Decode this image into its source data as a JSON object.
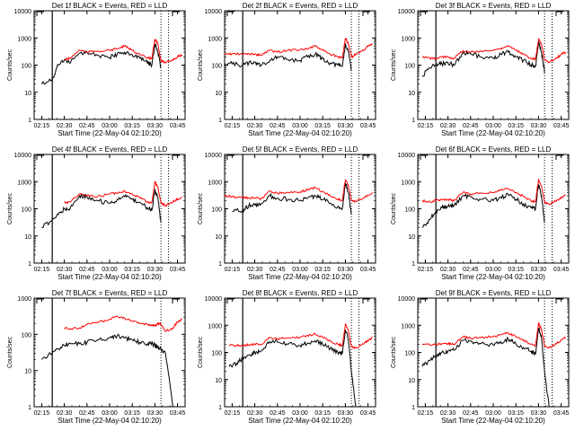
{
  "figure": {
    "line_colors": {
      "events": "#000000",
      "lld": "#ff0000",
      "axes": "#000000"
    },
    "x_tick_labels": [
      "02:15",
      "02:30",
      "02:45",
      "03:00",
      "03:15",
      "03:30",
      "03:45"
    ],
    "y_tick_labels": [
      "1",
      "10",
      "100",
      "1000",
      "10000"
    ]
  },
  "chart_data": [
    {
      "type": "line",
      "title": "Det 1f BLACK = Events, RED = LLD",
      "xlabel": "Start Time (22-May-04 02:10:20)",
      "ylabel": "Counts/sec",
      "y_scale": "log",
      "ylim": [
        1,
        10000
      ],
      "xlim": [
        "02:10",
        "03:50"
      ],
      "x_ticks": [
        "02:15",
        "02:30",
        "02:45",
        "03:00",
        "03:15",
        "03:30",
        "03:45"
      ],
      "vlines": [
        "02:22",
        "03:34",
        "03:39"
      ],
      "x": [
        "02:15",
        "02:22",
        "02:26",
        "02:30",
        "02:34",
        "02:40",
        "02:45",
        "02:52",
        "03:00",
        "03:05",
        "03:10",
        "03:15",
        "03:20",
        "03:25",
        "03:28",
        "03:30",
        "03:32",
        "03:34",
        "03:37",
        "03:42",
        "03:45",
        "03:48"
      ],
      "series": [
        {
          "name": "Events",
          "values": [
            20,
            30,
            100,
            160,
            120,
            270,
            300,
            230,
            190,
            250,
            300,
            240,
            180,
            120,
            100,
            600,
            300,
            80,
            null,
            null,
            null,
            null
          ]
        },
        {
          "name": "LLD",
          "values": [
            null,
            null,
            null,
            160,
            180,
            360,
            300,
            330,
            350,
            400,
            500,
            350,
            250,
            180,
            180,
            900,
            600,
            150,
            120,
            160,
            200,
            240
          ]
        }
      ]
    },
    {
      "type": "line",
      "title": "Det 2f BLACK = Events, RED = LLD",
      "xlabel": "Start Time (22-May-04 02:10:20)",
      "ylabel": "Counts/sec",
      "y_scale": "log",
      "ylim": [
        1,
        10000
      ],
      "xlim": [
        "02:10",
        "03:50"
      ],
      "x_ticks": [
        "02:15",
        "02:30",
        "02:45",
        "03:00",
        "03:15",
        "03:30",
        "03:45"
      ],
      "vlines": [
        "02:22",
        "03:34",
        "03:39"
      ],
      "x": [
        "02:10",
        "02:15",
        "02:22",
        "02:26",
        "02:30",
        "02:34",
        "02:40",
        "02:45",
        "02:52",
        "03:00",
        "03:05",
        "03:10",
        "03:15",
        "03:20",
        "03:25",
        "03:28",
        "03:30",
        "03:32",
        "03:34",
        "03:37",
        "03:42",
        "03:45",
        "03:48"
      ],
      "series": [
        {
          "name": "Events",
          "values": [
            120,
            110,
            100,
            120,
            130,
            100,
            150,
            200,
            160,
            150,
            200,
            250,
            170,
            120,
            100,
            90,
            600,
            300,
            60,
            null,
            null,
            null,
            null
          ]
        },
        {
          "name": "LLD",
          "values": [
            250,
            260,
            250,
            260,
            250,
            230,
            350,
            300,
            350,
            380,
            400,
            500,
            350,
            250,
            200,
            180,
            1000,
            600,
            200,
            250,
            350,
            500,
            600
          ]
        }
      ]
    },
    {
      "type": "line",
      "title": "Det 3f BLACK = Events, RED = LLD",
      "xlabel": "Start Time (22-May-04 02:10:20)",
      "ylabel": "Counts/sec",
      "y_scale": "log",
      "ylim": [
        1,
        10000
      ],
      "xlim": [
        "02:10",
        "03:50"
      ],
      "x_ticks": [
        "02:15",
        "02:30",
        "02:45",
        "03:00",
        "03:15",
        "03:30",
        "03:45"
      ],
      "vlines": [
        "02:22",
        "03:34",
        "03:39"
      ],
      "x": [
        "02:13",
        "02:18",
        "02:22",
        "02:26",
        "02:30",
        "02:34",
        "02:40",
        "02:45",
        "02:52",
        "03:00",
        "03:05",
        "03:10",
        "03:15",
        "03:20",
        "03:25",
        "03:28",
        "03:30",
        "03:32",
        "03:34",
        "03:37",
        "03:42",
        "03:45",
        "03:48"
      ],
      "series": [
        {
          "name": "Events",
          "values": [
            40,
            80,
            100,
            110,
            120,
            100,
            280,
            260,
            200,
            180,
            250,
            300,
            200,
            150,
            100,
            90,
            700,
            300,
            50,
            null,
            null,
            null,
            null
          ]
        },
        {
          "name": "LLD",
          "values": [
            200,
            180,
            170,
            200,
            200,
            180,
            340,
            300,
            330,
            350,
            420,
            500,
            350,
            250,
            180,
            170,
            900,
            600,
            150,
            130,
            180,
            250,
            300
          ]
        }
      ]
    },
    {
      "type": "line",
      "title": "Det 4f BLACK = Events, RED = LLD",
      "xlabel": "Start Time (22-May-04 02:10:20)",
      "ylabel": "Counts/sec",
      "y_scale": "log",
      "ylim": [
        1,
        10000
      ],
      "xlim": [
        "02:10",
        "03:50"
      ],
      "x_ticks": [
        "02:15",
        "02:30",
        "02:45",
        "03:00",
        "03:15",
        "03:30",
        "03:45"
      ],
      "vlines": [
        "02:22",
        "03:34",
        "03:39"
      ],
      "x": [
        "02:15",
        "02:22",
        "02:26",
        "02:30",
        "02:34",
        "02:40",
        "02:45",
        "02:52",
        "03:00",
        "03:05",
        "03:10",
        "03:15",
        "03:20",
        "03:25",
        "03:28",
        "03:30",
        "03:32",
        "03:34",
        "03:37",
        "03:42",
        "03:45",
        "03:48"
      ],
      "series": [
        {
          "name": "Events",
          "values": [
            20,
            40,
            60,
            100,
            110,
            300,
            280,
            200,
            160,
            220,
            280,
            220,
            170,
            110,
            90,
            500,
            250,
            30,
            null,
            null,
            null,
            null
          ]
        },
        {
          "name": "LLD",
          "values": [
            null,
            null,
            null,
            170,
            180,
            350,
            300,
            280,
            350,
            380,
            450,
            350,
            250,
            180,
            170,
            1000,
            600,
            170,
            130,
            180,
            230,
            270
          ]
        }
      ]
    },
    {
      "type": "line",
      "title": "Det 5f BLACK = Events, RED = LLD",
      "xlabel": "Start Time (22-May-04 02:10:20)",
      "ylabel": "Counts/sec",
      "y_scale": "log",
      "ylim": [
        1,
        10000
      ],
      "xlim": [
        "02:10",
        "03:50"
      ],
      "x_ticks": [
        "02:15",
        "02:30",
        "02:45",
        "03:00",
        "03:15",
        "03:30",
        "03:45"
      ],
      "vlines": [
        "02:22",
        "03:34",
        "03:39"
      ],
      "x": [
        "02:10",
        "02:15",
        "02:22",
        "02:26",
        "02:30",
        "02:34",
        "02:40",
        "02:45",
        "02:52",
        "03:00",
        "03:05",
        "03:10",
        "03:15",
        "03:20",
        "03:25",
        "03:28",
        "03:30",
        "03:32",
        "03:34",
        "03:37",
        "03:42",
        "03:45",
        "03:48"
      ],
      "series": [
        {
          "name": "Events",
          "values": [
            null,
            80,
            90,
            130,
            140,
            150,
            300,
            250,
            220,
            200,
            250,
            300,
            220,
            160,
            120,
            100,
            900,
            400,
            60,
            null,
            null,
            null,
            null
          ]
        },
        {
          "name": "LLD",
          "values": [
            300,
            280,
            260,
            250,
            250,
            230,
            450,
            380,
            400,
            420,
            500,
            600,
            420,
            300,
            220,
            200,
            1200,
            700,
            200,
            180,
            250,
            320,
            400
          ]
        }
      ]
    },
    {
      "type": "line",
      "title": "Det 6f BLACK = Events, RED = LLD",
      "xlabel": "Start Time (22-May-04 02:10:20)",
      "ylabel": "Counts/sec",
      "y_scale": "log",
      "ylim": [
        1,
        10000
      ],
      "xlim": [
        "02:10",
        "03:50"
      ],
      "x_ticks": [
        "02:15",
        "02:30",
        "02:45",
        "03:00",
        "03:15",
        "03:30",
        "03:45"
      ],
      "vlines": [
        "02:22",
        "03:34",
        "03:39"
      ],
      "x": [
        "02:13",
        "02:18",
        "02:22",
        "02:26",
        "02:30",
        "02:34",
        "02:40",
        "02:45",
        "02:52",
        "03:00",
        "03:05",
        "03:10",
        "03:15",
        "03:20",
        "03:25",
        "03:28",
        "03:30",
        "03:32",
        "03:34",
        "03:37",
        "03:42",
        "03:45",
        "03:48"
      ],
      "series": [
        {
          "name": "Events",
          "values": [
            20,
            40,
            80,
            110,
            120,
            130,
            300,
            280,
            220,
            200,
            270,
            320,
            220,
            150,
            110,
            100,
            800,
            300,
            30,
            null,
            null,
            null,
            null
          ]
        },
        {
          "name": "LLD",
          "values": [
            200,
            180,
            200,
            220,
            220,
            200,
            400,
            350,
            380,
            400,
            480,
            550,
            400,
            280,
            200,
            180,
            1200,
            700,
            170,
            150,
            200,
            260,
            320
          ]
        }
      ]
    },
    {
      "type": "line",
      "title": "Det 7f BLACK = Events, RED = LLD",
      "xlabel": "Start Time (22-May-04 02:10:20)",
      "ylabel": "Counts/sec",
      "y_scale": "log",
      "ylim": [
        1,
        1000
      ],
      "xlim": [
        "02:10",
        "03:50"
      ],
      "x_ticks": [
        "02:15",
        "02:30",
        "02:45",
        "03:00",
        "03:15",
        "03:30",
        "03:45"
      ],
      "vlines": [
        "02:22",
        "03:34"
      ],
      "x": [
        "02:15",
        "02:22",
        "02:26",
        "02:30",
        "02:34",
        "02:40",
        "02:45",
        "02:52",
        "03:00",
        "03:05",
        "03:10",
        "03:15",
        "03:20",
        "03:25",
        "03:28",
        "03:30",
        "03:32",
        "03:34",
        "03:37",
        "03:42",
        "03:45",
        "03:48"
      ],
      "series": [
        {
          "name": "Events",
          "values": [
            20,
            30,
            40,
            50,
            55,
            55,
            60,
            70,
            80,
            90,
            80,
            70,
            60,
            55,
            55,
            50,
            45,
            40,
            30,
            1,
            null,
            null
          ]
        },
        {
          "name": "LLD",
          "values": [
            null,
            null,
            null,
            150,
            140,
            150,
            190,
            210,
            260,
            320,
            280,
            230,
            200,
            190,
            180,
            170,
            200,
            190,
            120,
            150,
            220,
            260
          ]
        }
      ]
    },
    {
      "type": "line",
      "title": "Det 8f BLACK = Events, RED = LLD",
      "xlabel": "Start Time (22-May-04 02:10:20)",
      "ylabel": "Counts/sec",
      "y_scale": "log",
      "ylim": [
        1,
        10000
      ],
      "xlim": [
        "02:10",
        "03:50"
      ],
      "x_ticks": [
        "02:15",
        "02:30",
        "02:45",
        "03:00",
        "03:15",
        "03:30",
        "03:45"
      ],
      "vlines": [
        "02:22",
        "03:34",
        "03:39"
      ],
      "x": [
        "02:13",
        "02:18",
        "02:22",
        "02:26",
        "02:30",
        "02:34",
        "02:40",
        "02:45",
        "02:52",
        "03:00",
        "03:05",
        "03:10",
        "03:15",
        "03:20",
        "03:25",
        "03:28",
        "03:30",
        "03:32",
        "03:34",
        "03:37",
        "03:42",
        "03:45",
        "03:48"
      ],
      "series": [
        {
          "name": "Events",
          "values": [
            30,
            40,
            60,
            80,
            100,
            110,
            250,
            240,
            200,
            180,
            220,
            270,
            200,
            140,
            100,
            90,
            700,
            300,
            20,
            1,
            null,
            null,
            null
          ]
        },
        {
          "name": "LLD",
          "values": [
            190,
            180,
            180,
            190,
            200,
            190,
            350,
            320,
            340,
            360,
            420,
            480,
            360,
            260,
            200,
            180,
            1100,
            650,
            160,
            150,
            200,
            280,
            350
          ]
        }
      ]
    },
    {
      "type": "line",
      "title": "Det 9f BLACK = Events, RED = LLD",
      "xlabel": "Start Time (22-May-04 02:10:20)",
      "ylabel": "Counts/sec",
      "y_scale": "log",
      "ylim": [
        1,
        10000
      ],
      "xlim": [
        "02:10",
        "03:50"
      ],
      "x_ticks": [
        "02:15",
        "02:30",
        "02:45",
        "03:00",
        "03:15",
        "03:30",
        "03:45"
      ],
      "vlines": [
        "02:22",
        "03:34",
        "03:39"
      ],
      "x": [
        "02:13",
        "02:18",
        "02:22",
        "02:26",
        "02:30",
        "02:34",
        "02:40",
        "02:45",
        "02:52",
        "03:00",
        "03:05",
        "03:10",
        "03:15",
        "03:20",
        "03:25",
        "03:28",
        "03:30",
        "03:32",
        "03:34",
        "03:37",
        "03:42",
        "03:45",
        "03:48"
      ],
      "series": [
        {
          "name": "Events",
          "values": [
            30,
            50,
            80,
            100,
            110,
            120,
            280,
            260,
            210,
            190,
            250,
            300,
            210,
            150,
            110,
            90,
            800,
            350,
            20,
            1,
            null,
            null,
            null
          ]
        },
        {
          "name": "LLD",
          "values": [
            200,
            190,
            190,
            210,
            210,
            200,
            380,
            330,
            360,
            380,
            450,
            520,
            380,
            270,
            200,
            180,
            1200,
            700,
            170,
            150,
            210,
            280,
            350
          ]
        }
      ]
    }
  ]
}
